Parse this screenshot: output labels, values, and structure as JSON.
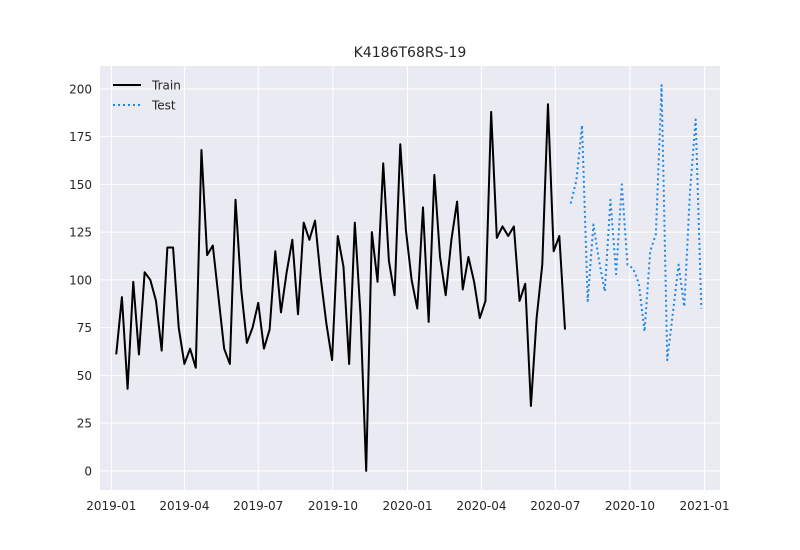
{
  "chart_data": {
    "type": "line",
    "title": "K4186T68RS-19",
    "xlabel": "",
    "ylabel": "",
    "x_range": [
      "2018-12-18",
      "2021-01-20"
    ],
    "ylim": [
      -10,
      212
    ],
    "grid": true,
    "legend": "top-left",
    "x_ticks": [
      "2019-01",
      "2019-04",
      "2019-07",
      "2019-10",
      "2020-01",
      "2020-04",
      "2020-07",
      "2020-10",
      "2021-01"
    ],
    "y_ticks": [
      0,
      25,
      50,
      75,
      100,
      125,
      150,
      175,
      200
    ],
    "colors": {
      "train": "#000000",
      "test": "#1e88e5",
      "background": "#eaeaf2",
      "grid": "#ffffff"
    },
    "series": [
      {
        "name": "Train",
        "style": "solid",
        "points": [
          [
            "2019-01-07",
            61
          ],
          [
            "2019-01-14",
            91
          ],
          [
            "2019-01-21",
            43
          ],
          [
            "2019-01-28",
            99
          ],
          [
            "2019-02-04",
            61
          ],
          [
            "2019-02-11",
            104
          ],
          [
            "2019-02-18",
            100
          ],
          [
            "2019-02-25",
            89
          ],
          [
            "2019-03-04",
            63
          ],
          [
            "2019-03-11",
            117
          ],
          [
            "2019-03-18",
            117
          ],
          [
            "2019-03-25",
            75
          ],
          [
            "2019-04-01",
            56
          ],
          [
            "2019-04-08",
            64
          ],
          [
            "2019-04-15",
            54
          ],
          [
            "2019-04-22",
            168
          ],
          [
            "2019-04-29",
            113
          ],
          [
            "2019-05-06",
            118
          ],
          [
            "2019-05-13",
            91
          ],
          [
            "2019-05-20",
            64
          ],
          [
            "2019-05-27",
            56
          ],
          [
            "2019-06-03",
            142
          ],
          [
            "2019-06-10",
            95
          ],
          [
            "2019-06-17",
            67
          ],
          [
            "2019-06-24",
            75
          ],
          [
            "2019-07-01",
            88
          ],
          [
            "2019-07-08",
            64
          ],
          [
            "2019-07-15",
            74
          ],
          [
            "2019-07-22",
            115
          ],
          [
            "2019-07-29",
            83
          ],
          [
            "2019-08-05",
            104
          ],
          [
            "2019-08-12",
            121
          ],
          [
            "2019-08-19",
            82
          ],
          [
            "2019-08-26",
            130
          ],
          [
            "2019-09-02",
            121
          ],
          [
            "2019-09-09",
            131
          ],
          [
            "2019-09-16",
            101
          ],
          [
            "2019-09-23",
            77
          ],
          [
            "2019-09-30",
            58
          ],
          [
            "2019-10-07",
            123
          ],
          [
            "2019-10-14",
            107
          ],
          [
            "2019-10-21",
            56
          ],
          [
            "2019-10-28",
            130
          ],
          [
            "2019-11-04",
            82
          ],
          [
            "2019-11-11",
            0
          ],
          [
            "2019-11-18",
            125
          ],
          [
            "2019-11-25",
            99
          ],
          [
            "2019-12-02",
            161
          ],
          [
            "2019-12-09",
            110
          ],
          [
            "2019-12-16",
            92
          ],
          [
            "2019-12-23",
            171
          ],
          [
            "2019-12-30",
            126
          ],
          [
            "2020-01-06",
            100
          ],
          [
            "2020-01-13",
            85
          ],
          [
            "2020-01-20",
            138
          ],
          [
            "2020-01-27",
            78
          ],
          [
            "2020-02-03",
            155
          ],
          [
            "2020-02-10",
            112
          ],
          [
            "2020-02-17",
            92
          ],
          [
            "2020-02-24",
            121
          ],
          [
            "2020-03-02",
            141
          ],
          [
            "2020-03-09",
            95
          ],
          [
            "2020-03-16",
            112
          ],
          [
            "2020-03-23",
            99
          ],
          [
            "2020-03-30",
            80
          ],
          [
            "2020-04-06",
            89
          ],
          [
            "2020-04-13",
            188
          ],
          [
            "2020-04-20",
            122
          ],
          [
            "2020-04-27",
            128
          ],
          [
            "2020-05-04",
            123
          ],
          [
            "2020-05-11",
            128
          ],
          [
            "2020-05-18",
            89
          ],
          [
            "2020-05-25",
            98
          ],
          [
            "2020-06-01",
            34
          ],
          [
            "2020-06-08",
            80
          ],
          [
            "2020-06-15",
            108
          ],
          [
            "2020-06-22",
            192
          ],
          [
            "2020-06-29",
            115
          ],
          [
            "2020-07-06",
            123
          ],
          [
            "2020-07-13",
            74
          ]
        ]
      },
      {
        "name": "Test",
        "style": "dotted",
        "points": [
          [
            "2020-07-20",
            140
          ],
          [
            "2020-07-27",
            152
          ],
          [
            "2020-08-03",
            181
          ],
          [
            "2020-08-10",
            89
          ],
          [
            "2020-08-17",
            129
          ],
          [
            "2020-08-24",
            110
          ],
          [
            "2020-08-31",
            94
          ],
          [
            "2020-09-07",
            142
          ],
          [
            "2020-09-14",
            103
          ],
          [
            "2020-09-21",
            150
          ],
          [
            "2020-09-28",
            108
          ],
          [
            "2020-10-05",
            106
          ],
          [
            "2020-10-12",
            98
          ],
          [
            "2020-10-19",
            73
          ],
          [
            "2020-10-26",
            115
          ],
          [
            "2020-11-02",
            124
          ],
          [
            "2020-11-09",
            202
          ],
          [
            "2020-11-16",
            58
          ],
          [
            "2020-11-23",
            83
          ],
          [
            "2020-11-30",
            108
          ],
          [
            "2020-12-07",
            86
          ],
          [
            "2020-12-14",
            146
          ],
          [
            "2020-12-21",
            184
          ],
          [
            "2020-12-28",
            85
          ]
        ]
      }
    ]
  }
}
